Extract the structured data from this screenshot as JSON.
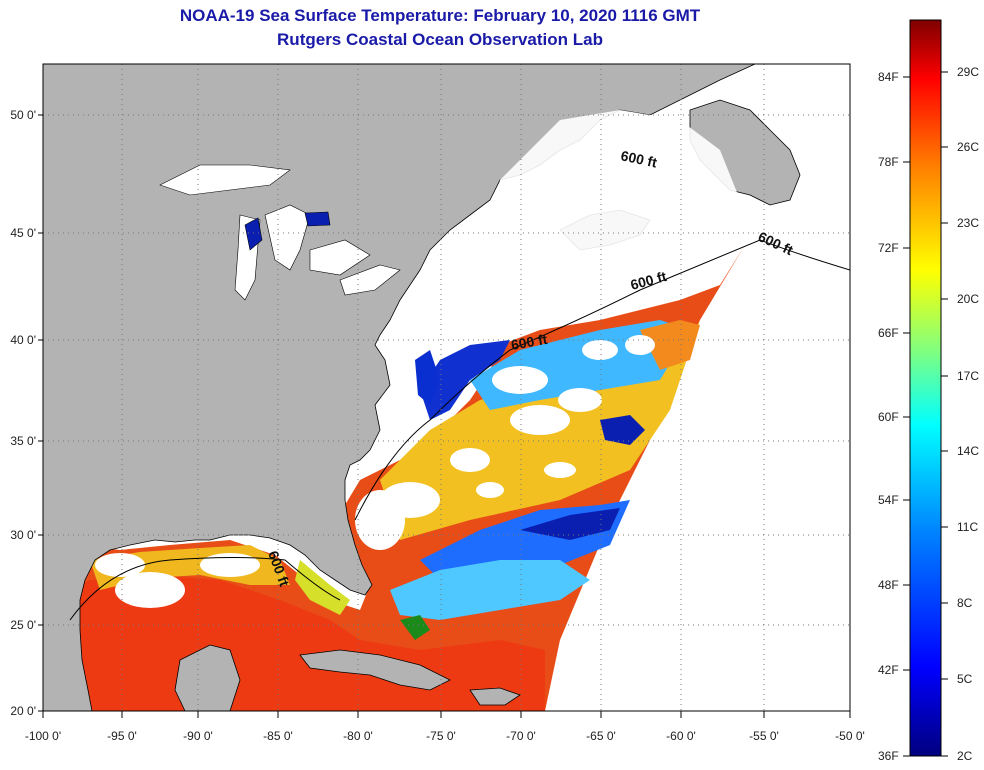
{
  "title": {
    "line1": "NOAA-19 Sea Surface Temperature:  February 10, 2020 1116 GMT",
    "line2": "Rutgers Coastal Ocean Observation Lab"
  },
  "map": {
    "lon_labels": [
      "-100 0'",
      "-95 0'",
      "-90 0'",
      "-85 0'",
      "-80 0'",
      "-75 0'",
      "-70 0'",
      "-65 0'",
      "-60 0'",
      "-55 0'",
      "-50 0'"
    ],
    "lat_labels": [
      "50 0'",
      "45 0'",
      "40 0'",
      "35 0'",
      "30 0'",
      "25 0'",
      "20 0'"
    ],
    "contour_labels": [
      "600 ft",
      "600 ft",
      "600 ft",
      "600 ft",
      "600 ft"
    ],
    "colors": {
      "land": "#b3b3b3",
      "cloud": "#ffffff",
      "cold": "#0a1fb0",
      "cool": "#25a6ff",
      "mild": "#f2dc1e",
      "warm": "#f28a1e",
      "hot": "#e83a14"
    }
  },
  "colorbar": {
    "fahrenheit_labels": [
      "84F",
      "78F",
      "72F",
      "66F",
      "60F",
      "54F",
      "48F",
      "42F",
      "36F"
    ],
    "celsius_labels": [
      "29C",
      "26C",
      "23C",
      "20C",
      "17C",
      "14C",
      "11C",
      "8C",
      "5C",
      "2C"
    ],
    "stops": [
      "#00007f",
      "#0000ff",
      "#0080ff",
      "#00ffff",
      "#80ff80",
      "#ffff00",
      "#ff8000",
      "#ff0000",
      "#7f0000"
    ]
  }
}
